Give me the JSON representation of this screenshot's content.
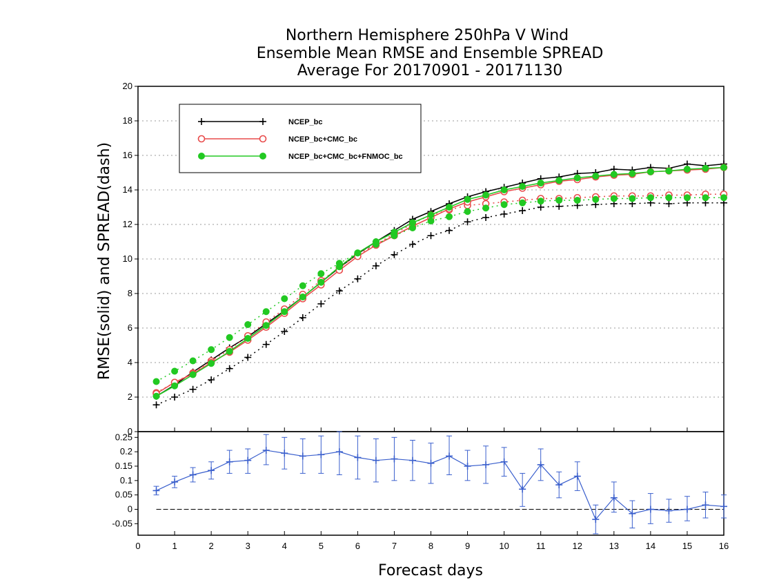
{
  "chart_data": {
    "type": "line",
    "title": [
      "Northern Hemisphere 250hPa V Wind",
      "Ensemble Mean RMSE and Ensemble SPREAD",
      "Average For 20170901 - 20171130"
    ],
    "xlabel": "Forecast days",
    "ylabel": "RMSE(solid) and SPREAD(dash)",
    "xlim": [
      0,
      16
    ],
    "x_ticks": [
      "0",
      "1",
      "2",
      "3",
      "4",
      "5",
      "6",
      "7",
      "8",
      "9",
      "10",
      "11",
      "12",
      "13",
      "14",
      "15",
      "16"
    ],
    "top_panel": {
      "ylim": [
        0,
        20
      ],
      "y_ticks": [
        "0",
        "2",
        "4",
        "6",
        "8",
        "10",
        "12",
        "14",
        "16",
        "18",
        "20"
      ],
      "grid": true,
      "legend_position": "top-left",
      "x": [
        0.5,
        1,
        1.5,
        2,
        2.5,
        3,
        3.5,
        4,
        4.5,
        5,
        5.5,
        6,
        6.5,
        7,
        7.5,
        8,
        8.5,
        9,
        9.5,
        10,
        10.5,
        11,
        11.5,
        12,
        12.5,
        13,
        13.5,
        14,
        14.5,
        15,
        15.5,
        16
      ],
      "series": [
        {
          "name": "NCEP_bc",
          "color": "#000000",
          "marker": "plus",
          "rmse": [
            2.05,
            2.7,
            3.45,
            4.15,
            4.85,
            5.5,
            6.25,
            7.0,
            7.8,
            8.65,
            9.5,
            10.3,
            11.0,
            11.65,
            12.3,
            12.75,
            13.2,
            13.6,
            13.9,
            14.15,
            14.4,
            14.65,
            14.75,
            14.95,
            15.0,
            15.2,
            15.15,
            15.3,
            15.25,
            15.5,
            15.4,
            15.5
          ],
          "spread": [
            1.55,
            2.0,
            2.45,
            3.0,
            3.65,
            4.3,
            5.05,
            5.8,
            6.6,
            7.4,
            8.15,
            8.85,
            9.6,
            10.25,
            10.85,
            11.35,
            11.65,
            12.15,
            12.4,
            12.6,
            12.8,
            13.0,
            13.05,
            13.1,
            13.15,
            13.2,
            13.2,
            13.25,
            13.2,
            13.25,
            13.25,
            13.25
          ]
        },
        {
          "name": "NCEP_bc+CMC_bc",
          "color": "#e84a4a",
          "marker": "open-circle",
          "rmse": [
            2.2,
            2.85,
            3.35,
            4.0,
            4.6,
            5.3,
            6.05,
            6.85,
            7.7,
            8.5,
            9.35,
            10.15,
            10.8,
            11.35,
            11.9,
            12.4,
            12.9,
            13.3,
            13.6,
            13.9,
            14.1,
            14.3,
            14.5,
            14.6,
            14.75,
            14.85,
            14.9,
            15.05,
            15.1,
            15.15,
            15.2,
            15.3
          ],
          "spread": [
            2.25,
            2.85,
            3.4,
            4.1,
            4.75,
            5.55,
            6.35,
            7.1,
            7.95,
            8.75,
            9.5,
            10.25,
            10.85,
            11.45,
            12.05,
            12.55,
            12.85,
            13.1,
            13.2,
            13.3,
            13.4,
            13.5,
            13.5,
            13.55,
            13.6,
            13.65,
            13.65,
            13.65,
            13.7,
            13.7,
            13.75,
            13.75
          ]
        },
        {
          "name": "NCEP_bc+CMC_bc+FNMOC_bc",
          "color": "#22c922",
          "marker": "filled-circle",
          "rmse": [
            2.05,
            2.65,
            3.3,
            3.95,
            4.65,
            5.4,
            6.15,
            6.95,
            7.8,
            8.65,
            9.55,
            10.35,
            11.0,
            11.55,
            12.1,
            12.55,
            13.0,
            13.45,
            13.7,
            14.0,
            14.2,
            14.4,
            14.55,
            14.7,
            14.8,
            14.9,
            14.95,
            15.05,
            15.1,
            15.2,
            15.25,
            15.3
          ],
          "spread": [
            2.9,
            3.5,
            4.1,
            4.75,
            5.45,
            6.2,
            6.95,
            7.7,
            8.45,
            9.15,
            9.75,
            10.35,
            10.85,
            11.35,
            11.8,
            12.2,
            12.45,
            12.75,
            12.95,
            13.15,
            13.25,
            13.35,
            13.4,
            13.4,
            13.45,
            13.5,
            13.5,
            13.55,
            13.55,
            13.55,
            13.55,
            13.55
          ]
        }
      ]
    },
    "bottom_panel": {
      "ylim": [
        -0.09,
        0.27
      ],
      "y_ticks": [
        "-0.05",
        "0",
        "0.05",
        "0.1",
        "0.15",
        "0.2",
        "0.25"
      ],
      "zero_line": true,
      "series": {
        "color": "#3a5fcd",
        "marker": "plus",
        "x": [
          0.5,
          1,
          1.5,
          2,
          2.5,
          3,
          3.5,
          4,
          4.5,
          5,
          5.5,
          6,
          6.5,
          7,
          7.5,
          8,
          8.5,
          9,
          9.5,
          10,
          10.5,
          11,
          11.5,
          12,
          12.5,
          13,
          13.5,
          14,
          14.5,
          15,
          15.5,
          16
        ],
        "values": [
          0.065,
          0.095,
          0.12,
          0.135,
          0.165,
          0.17,
          0.205,
          0.195,
          0.185,
          0.19,
          0.2,
          0.18,
          0.17,
          0.175,
          0.17,
          0.16,
          0.185,
          0.15,
          0.155,
          0.165,
          0.07,
          0.155,
          0.085,
          0.115,
          -0.035,
          0.04,
          -0.015,
          0.0,
          -0.005,
          0.0,
          0.015,
          0.01
        ],
        "err_low": [
          0.05,
          0.075,
          0.095,
          0.105,
          0.125,
          0.125,
          0.155,
          0.14,
          0.125,
          0.125,
          0.12,
          0.105,
          0.095,
          0.1,
          0.1,
          0.09,
          0.12,
          0.1,
          0.09,
          0.115,
          0.01,
          0.1,
          0.04,
          0.065,
          -0.085,
          -0.01,
          -0.065,
          -0.05,
          -0.045,
          -0.04,
          -0.03,
          -0.03
        ],
        "err_high": [
          0.08,
          0.115,
          0.145,
          0.165,
          0.205,
          0.21,
          0.26,
          0.25,
          0.245,
          0.255,
          0.28,
          0.255,
          0.245,
          0.25,
          0.24,
          0.23,
          0.255,
          0.205,
          0.22,
          0.215,
          0.125,
          0.21,
          0.13,
          0.165,
          0.015,
          0.095,
          0.03,
          0.055,
          0.035,
          0.045,
          0.06,
          0.05
        ]
      }
    }
  }
}
